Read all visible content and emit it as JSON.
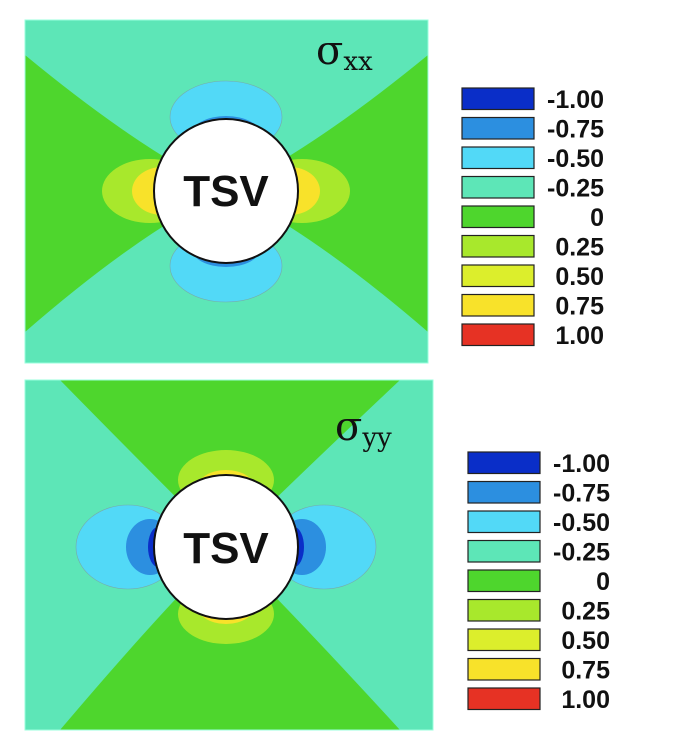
{
  "chart_data": [
    {
      "type": "heatmap",
      "title": "σ",
      "title_subscript": "xx",
      "annotation": "TSV",
      "legend": {
        "placement": "right",
        "levels": [
          {
            "label": "-1.00",
            "value": -1.0,
            "color": "#0a2ec8"
          },
          {
            "label": "-0.75",
            "value": -0.75,
            "color": "#2c8fe0"
          },
          {
            "label": "-0.50",
            "value": -0.5,
            "color": "#52d9f7"
          },
          {
            "label": "-0.25",
            "value": -0.25,
            "color": "#5de6b7"
          },
          {
            "label": "0",
            "value": 0.0,
            "color": "#4ed62d"
          },
          {
            "label": "0.25",
            "value": 0.25,
            "color": "#a8e82c"
          },
          {
            "label": "0.50",
            "value": 0.5,
            "color": "#dcee2c"
          },
          {
            "label": "0.75",
            "value": 0.75,
            "color": "#f8e22a"
          },
          {
            "label": "1.00",
            "value": 1.0,
            "color": "#e63224"
          }
        ]
      }
    },
    {
      "type": "heatmap",
      "title": "σ",
      "title_subscript": "yy",
      "annotation": "TSV",
      "legend": {
        "placement": "right",
        "levels": [
          {
            "label": "-1.00",
            "value": -1.0,
            "color": "#0a2ec8"
          },
          {
            "label": "-0.75",
            "value": -0.75,
            "color": "#2c8fe0"
          },
          {
            "label": "-0.50",
            "value": -0.5,
            "color": "#52d9f7"
          },
          {
            "label": "-0.25",
            "value": -0.25,
            "color": "#5de6b7"
          },
          {
            "label": "0",
            "value": 0.0,
            "color": "#4ed62d"
          },
          {
            "label": "0.25",
            "value": 0.25,
            "color": "#a8e82c"
          },
          {
            "label": "0.50",
            "value": 0.5,
            "color": "#dcee2c"
          },
          {
            "label": "0.75",
            "value": 0.75,
            "color": "#f8e22a"
          },
          {
            "label": "1.00",
            "value": 1.0,
            "color": "#e63224"
          }
        ]
      }
    }
  ]
}
